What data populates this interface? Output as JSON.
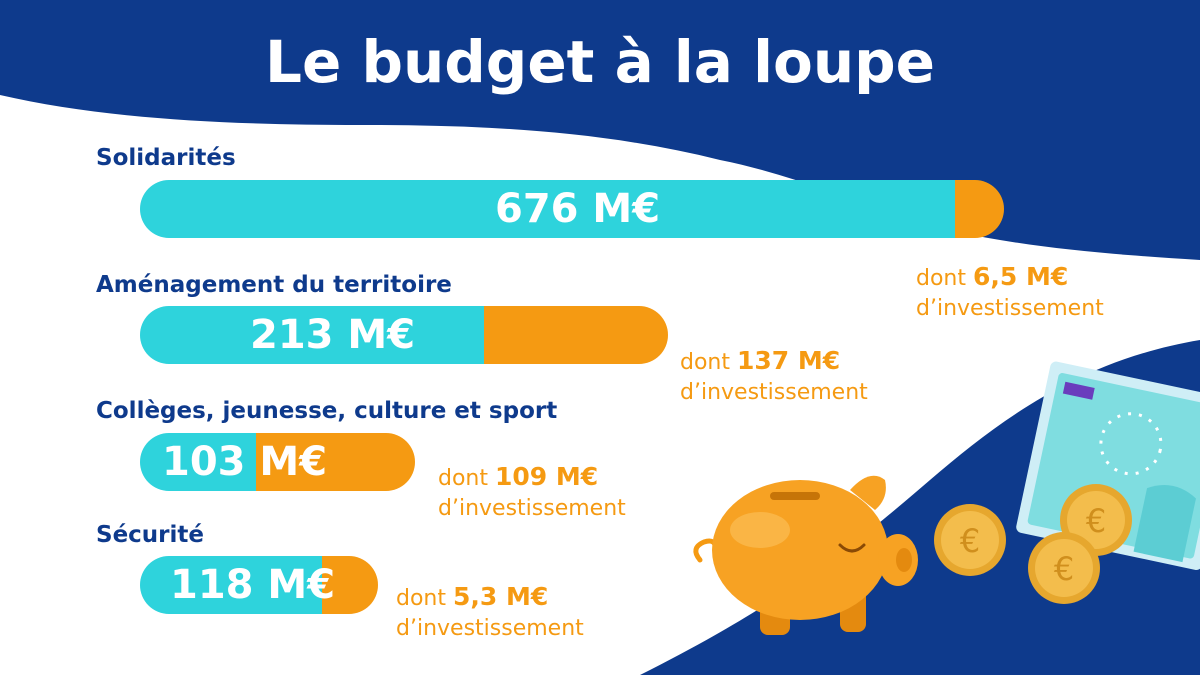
{
  "title": "Le budget à la loupe",
  "colors": {
    "navy": "#0e3a8c",
    "cyan": "#2ed3dc",
    "orange": "#f59a12",
    "white": "#ffffff"
  },
  "chart_data": {
    "type": "bar",
    "title": "Le budget à la loupe",
    "unit": "M€",
    "categories": [
      "Solidarités",
      "Aménagement du territoire",
      "Collèges, jeunesse, culture et sport",
      "Sécurité"
    ],
    "series": [
      {
        "name": "",
        "values": [
          676,
          213,
          103,
          118
        ]
      },
      {
        "name": "investissement",
        "values": [
          6.5,
          137,
          109,
          5.3
        ]
      }
    ]
  },
  "items": [
    {
      "label": "Solidarités",
      "value_text": "676 M€",
      "note_prefix": "dont",
      "note_amount": "6,5 M€",
      "note_suffix": "d’investissement"
    },
    {
      "label": "Aménagement du territoire",
      "value_text": "213 M€",
      "note_prefix": "dont",
      "note_amount": "137 M€",
      "note_suffix": "d’investissement"
    },
    {
      "label": "Collèges, jeunesse, culture et sport",
      "value_text": "103 M€",
      "note_prefix": "dont",
      "note_amount": "109 M€",
      "note_suffix": "d’investissement"
    },
    {
      "label": "Sécurité",
      "value_text": "118 M€",
      "note_prefix": "dont",
      "note_amount": "5,3 M€",
      "note_suffix": "d’investissement"
    }
  ],
  "illustration": {
    "piggy": "piggy-bank-icon",
    "coins": "euro-coin-icon",
    "banknote": "euro-banknote-icon",
    "coin_symbol": "€"
  }
}
